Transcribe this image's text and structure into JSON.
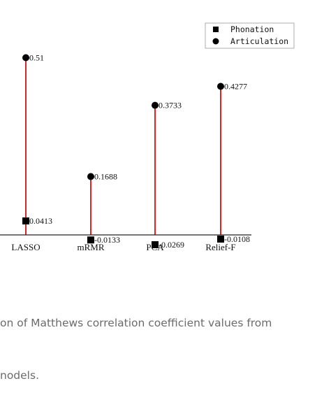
{
  "chart_data": {
    "type": "scatter",
    "categories": [
      "LASSO",
      "mRMR",
      "PCA",
      "Relief-F"
    ],
    "series": [
      {
        "name": "Phonation",
        "marker": "square",
        "values": [
          0.0413,
          -0.0133,
          -0.0269,
          -0.0108
        ],
        "labels": [
          "0.0413",
          "-0.0133",
          "-0.0269",
          "-0.0108"
        ]
      },
      {
        "name": "Articulation",
        "marker": "circle",
        "values": [
          0.51,
          0.1688,
          0.3733,
          0.4277
        ],
        "labels": [
          "0.51",
          "0.1688",
          "0.3733",
          "0.4277"
        ]
      }
    ],
    "stem_color": "#d62728",
    "marker_color": "#000000",
    "legend_position": "top-right",
    "ylim": [
      -0.04,
      0.6
    ],
    "grid": false
  },
  "caption": {
    "line1": "on of Matthews correlation coefficient values from",
    "line2": "nodels."
  }
}
